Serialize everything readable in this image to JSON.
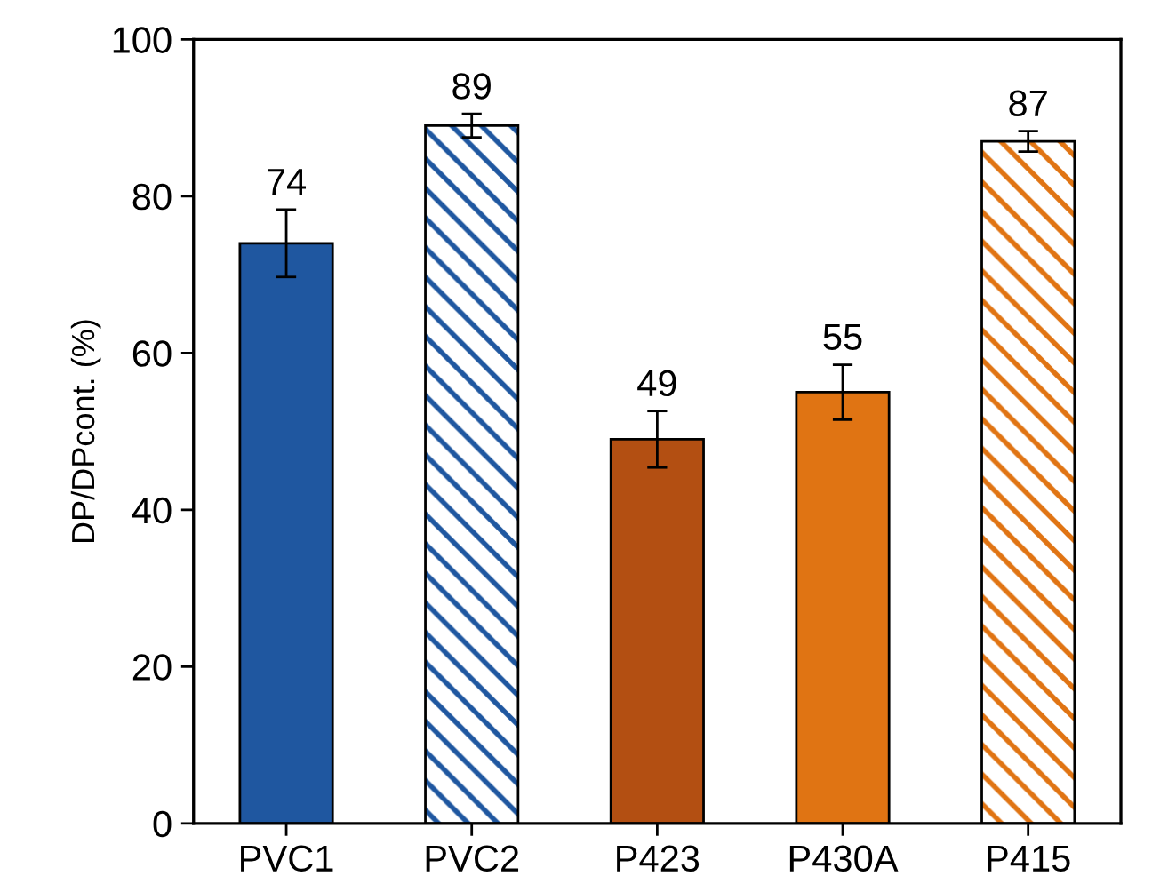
{
  "chart_data": {
    "type": "bar",
    "ylabel": "DP/DPcont. (%)",
    "categories": [
      "PVC1",
      "PVC2",
      "P423",
      "P430A",
      "P415"
    ],
    "values": [
      74,
      89,
      49,
      55,
      87
    ],
    "colors": [
      "#1f57a0",
      "#1f57a0",
      "#b34f12",
      "#e07413",
      "#e07413"
    ],
    "errors": [
      4.3,
      1.5,
      3.6,
      3.5,
      1.3
    ],
    "ylim": [
      0,
      100
    ],
    "yticks": [
      0,
      20,
      40,
      60,
      80,
      100
    ],
    "data_labels": true,
    "grid": false,
    "legend": false
  }
}
